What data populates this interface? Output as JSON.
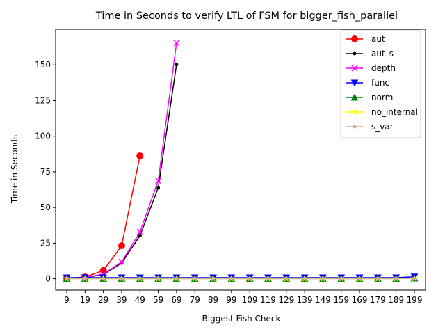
{
  "chart_data": {
    "type": "line",
    "title": "Time in Seconds to verify LTL of FSM for bigger_fish_parallel",
    "xlabel": "Biggest Fish Check",
    "ylabel": "Time in Seconds",
    "categories": [
      "9",
      "19",
      "29",
      "39",
      "49",
      "59",
      "69",
      "79",
      "89",
      "99",
      "109",
      "119",
      "129",
      "139",
      "149",
      "159",
      "169",
      "179",
      "189",
      "199"
    ],
    "ylim": [
      -8,
      175
    ],
    "yticks": [
      0,
      25,
      50,
      75,
      100,
      125,
      150
    ],
    "grid": false,
    "legend_position": "top-right",
    "series": [
      {
        "name": "aut",
        "color": "#ff0000",
        "marker": "circle-large",
        "values": [
          0.4,
          1.2,
          5.8,
          23.2,
          86.2,
          null,
          null,
          null,
          null,
          null,
          null,
          null,
          null,
          null,
          null,
          null,
          null,
          null,
          null,
          null
        ]
      },
      {
        "name": "aut_s",
        "color": "#000000",
        "marker": "circle-small",
        "values": [
          0.2,
          0.8,
          3.0,
          11.0,
          30.2,
          63.8,
          150.2,
          null,
          null,
          null,
          null,
          null,
          null,
          null,
          null,
          null,
          null,
          null,
          null,
          null
        ]
      },
      {
        "name": "depth",
        "color": "#ff00ff",
        "marker": "x",
        "values": [
          0.3,
          1.0,
          3.3,
          11.8,
          32.8,
          68.8,
          165.5,
          null,
          null,
          null,
          null,
          null,
          null,
          null,
          null,
          null,
          null,
          null,
          null,
          null
        ]
      },
      {
        "name": "func",
        "color": "#0000ff",
        "marker": "triangle-down",
        "values": [
          0.8,
          0.8,
          0.8,
          0.8,
          0.8,
          0.8,
          0.8,
          0.8,
          0.8,
          0.8,
          0.8,
          0.8,
          0.8,
          0.8,
          0.8,
          0.8,
          0.8,
          0.8,
          0.8,
          1.4
        ]
      },
      {
        "name": "norm",
        "color": "#008000",
        "marker": "triangle-up",
        "values": [
          0.1,
          0.1,
          0.1,
          0.1,
          0.1,
          0.1,
          0.1,
          0.1,
          0.1,
          0.1,
          0.1,
          0.1,
          0.1,
          0.1,
          0.1,
          0.1,
          0.1,
          0.1,
          0.1,
          0.3
        ]
      },
      {
        "name": "no_internal",
        "color": "#ffff00",
        "marker": "star",
        "values": [
          0.1,
          0.1,
          0.1,
          0.1,
          0.1,
          0.1,
          0.1,
          0.1,
          0.1,
          0.1,
          0.1,
          0.1,
          0.1,
          0.1,
          0.1,
          0.1,
          0.1,
          0.1,
          0.1,
          0.2
        ]
      },
      {
        "name": "s_var",
        "color": "#d2b48c",
        "marker": "circle-small",
        "values": [
          0.1,
          0.1,
          0.1,
          0.1,
          0.1,
          0.1,
          0.1,
          0.1,
          0.1,
          0.1,
          0.1,
          0.1,
          0.1,
          0.1,
          0.1,
          0.1,
          0.1,
          0.1,
          0.1,
          0.2
        ]
      }
    ]
  }
}
